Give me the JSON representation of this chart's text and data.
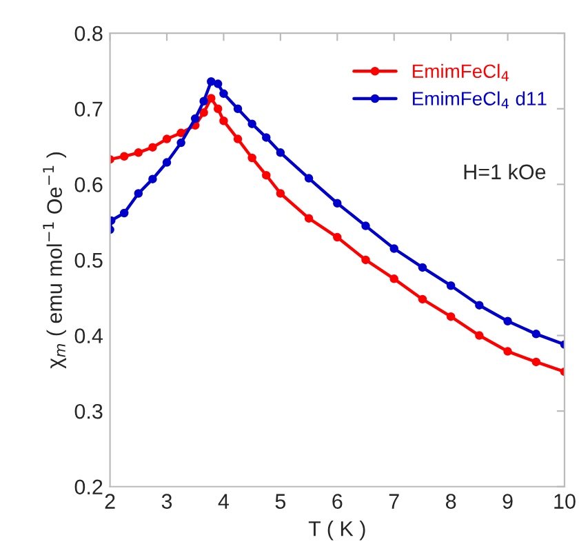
{
  "chart_data": {
    "type": "line",
    "xlabel": "T ( K )",
    "ylabel": "χ$_{m}$ ( emu mol$^{−1}$ Oe$^{−1}$ )",
    "xlim": [
      2,
      10
    ],
    "ylim": [
      0.2,
      0.8
    ],
    "xticks": [
      2,
      3,
      4,
      5,
      6,
      7,
      8,
      9,
      10
    ],
    "yticks": [
      0.2,
      0.3,
      0.4,
      0.5,
      0.6,
      0.7,
      0.8
    ],
    "grid": false,
    "legend": "top right",
    "marker": "circle",
    "line_style": "solid",
    "annotations": [
      "H=1 kOe"
    ],
    "series": [
      {
        "name": "EmimFeCl$_{4}$",
        "color": "#ff0000",
        "x": [
          2,
          2.25,
          2.5,
          2.75,
          3,
          3.25,
          3.5,
          3.65,
          3.78,
          3.9,
          4,
          4.25,
          4.5,
          4.75,
          5,
          5.5,
          6,
          6.5,
          7,
          7.5,
          8,
          8.5,
          9,
          9.5,
          10
        ],
        "values": [
          0.633,
          0.637,
          0.642,
          0.649,
          0.66,
          0.668,
          0.678,
          0.695,
          0.714,
          0.7,
          0.684,
          0.66,
          0.635,
          0.612,
          0.588,
          0.555,
          0.53,
          0.5,
          0.475,
          0.448,
          0.425,
          0.4,
          0.379,
          0.365,
          0.352
        ]
      },
      {
        "name": "EmimFeCl$_{4}$ d11",
        "color": "#0000cc",
        "x": [
          2,
          2.02,
          2.25,
          2.5,
          2.75,
          3,
          3.25,
          3.5,
          3.65,
          3.78,
          3.9,
          4,
          4.25,
          4.5,
          4.75,
          5,
          5.5,
          6,
          6.5,
          7,
          7.5,
          8,
          8.5,
          9,
          9.5,
          10
        ],
        "values": [
          0.54,
          0.552,
          0.562,
          0.588,
          0.607,
          0.629,
          0.655,
          0.687,
          0.71,
          0.736,
          0.733,
          0.72,
          0.7,
          0.68,
          0.662,
          0.642,
          0.608,
          0.575,
          0.545,
          0.515,
          0.49,
          0.466,
          0.44,
          0.419,
          0.402,
          0.388
        ]
      }
    ]
  }
}
